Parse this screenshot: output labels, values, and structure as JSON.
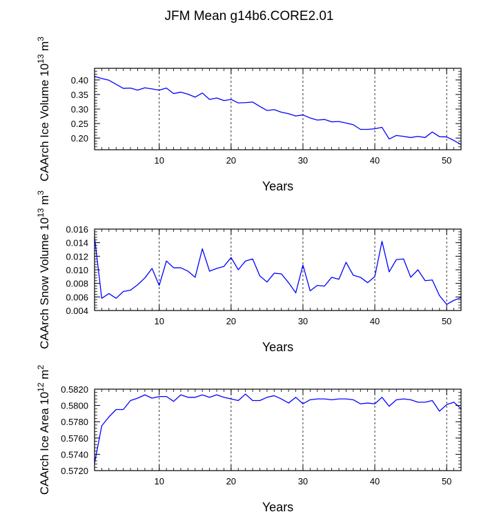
{
  "figure_title": "JFM Mean g14b6.CORE2.01",
  "colors": {
    "line": "#0000ff",
    "axis": "#000000",
    "grid": "#000000"
  },
  "chart_data": [
    {
      "type": "line",
      "name": "ice-volume",
      "title": "",
      "xlabel": "Years",
      "ylabel_text": "CAArch Ice Volume 10",
      "ylabel_exp": "13",
      "ylabel_unit": " m",
      "ylabel_unit_exp": "3",
      "xlim": [
        1,
        52
      ],
      "ylim": [
        0.16,
        0.44
      ],
      "xticks": [
        10,
        20,
        30,
        40,
        50
      ],
      "xtick_labels": [
        "10",
        "20",
        "30",
        "40",
        "50"
      ],
      "yticks": [
        0.2,
        0.25,
        0.3,
        0.35,
        0.4
      ],
      "ytick_labels": [
        "0.20",
        "0.25",
        "0.30",
        "0.35",
        "0.40"
      ],
      "grid": "vertical dashed at major x ticks",
      "x": [
        1,
        2,
        3,
        4,
        5,
        6,
        7,
        8,
        9,
        10,
        11,
        12,
        13,
        14,
        15,
        16,
        17,
        18,
        19,
        20,
        21,
        22,
        23,
        24,
        25,
        26,
        27,
        28,
        29,
        30,
        31,
        32,
        33,
        34,
        35,
        36,
        37,
        38,
        39,
        40,
        41,
        42,
        43,
        44,
        45,
        46,
        47,
        48,
        49,
        50,
        51,
        52
      ],
      "series": [
        {
          "name": "CAArch Ice Volume",
          "values": [
            0.412,
            0.405,
            0.399,
            0.385,
            0.371,
            0.372,
            0.365,
            0.373,
            0.369,
            0.365,
            0.372,
            0.353,
            0.358,
            0.351,
            0.341,
            0.355,
            0.333,
            0.338,
            0.329,
            0.333,
            0.321,
            0.322,
            0.324,
            0.309,
            0.295,
            0.298,
            0.289,
            0.284,
            0.276,
            0.28,
            0.269,
            0.262,
            0.264,
            0.256,
            0.257,
            0.252,
            0.246,
            0.23,
            0.23,
            0.232,
            0.237,
            0.197,
            0.209,
            0.206,
            0.202,
            0.206,
            0.202,
            0.221,
            0.205,
            0.204,
            0.192,
            0.178
          ]
        }
      ]
    },
    {
      "type": "line",
      "name": "snow-volume",
      "title": "",
      "xlabel": "Years",
      "ylabel_text": "CAArch Snow Volume 10",
      "ylabel_exp": "13",
      "ylabel_unit": " m",
      "ylabel_unit_exp": "3",
      "xlim": [
        1,
        52
      ],
      "ylim": [
        0.004,
        0.016
      ],
      "xticks": [
        10,
        20,
        30,
        40,
        50
      ],
      "xtick_labels": [
        "10",
        "20",
        "30",
        "40",
        "50"
      ],
      "yticks": [
        0.004,
        0.006,
        0.008,
        0.01,
        0.012,
        0.014,
        0.016
      ],
      "ytick_labels": [
        "0.004",
        "0.006",
        "0.008",
        "0.010",
        "0.012",
        "0.014",
        "0.016"
      ],
      "grid": "vertical dashed at major x ticks",
      "x": [
        1,
        2,
        3,
        4,
        5,
        6,
        7,
        8,
        9,
        10,
        11,
        12,
        13,
        14,
        15,
        16,
        17,
        18,
        19,
        20,
        21,
        22,
        23,
        24,
        25,
        26,
        27,
        28,
        29,
        30,
        31,
        32,
        33,
        34,
        35,
        36,
        37,
        38,
        39,
        40,
        41,
        42,
        43,
        44,
        45,
        46,
        47,
        48,
        49,
        50,
        51,
        52
      ],
      "series": [
        {
          "name": "CAArch Snow Volume",
          "values": [
            0.0148,
            0.0058,
            0.0065,
            0.0058,
            0.0068,
            0.007,
            0.0078,
            0.0088,
            0.0102,
            0.0077,
            0.0113,
            0.0103,
            0.0103,
            0.0098,
            0.0089,
            0.0131,
            0.0098,
            0.0102,
            0.0105,
            0.0118,
            0.01,
            0.0113,
            0.0116,
            0.0091,
            0.0082,
            0.0095,
            0.0094,
            0.0081,
            0.0066,
            0.0107,
            0.0069,
            0.0077,
            0.0076,
            0.0089,
            0.0086,
            0.0111,
            0.0092,
            0.0089,
            0.0081,
            0.009,
            0.0142,
            0.0097,
            0.0115,
            0.0116,
            0.0089,
            0.01,
            0.0084,
            0.0085,
            0.0062,
            0.0049,
            0.0055,
            0.0059
          ]
        }
      ]
    },
    {
      "type": "line",
      "name": "ice-area",
      "title": "",
      "xlabel": "Years",
      "ylabel_text": "CAArch Ice Area 10",
      "ylabel_exp": "12",
      "ylabel_unit": " m",
      "ylabel_unit_exp": "2",
      "xlim": [
        1,
        52
      ],
      "ylim": [
        0.572,
        0.582
      ],
      "xticks": [
        10,
        20,
        30,
        40,
        50
      ],
      "xtick_labels": [
        "10",
        "20",
        "30",
        "40",
        "50"
      ],
      "yticks": [
        0.572,
        0.574,
        0.576,
        0.578,
        0.58,
        0.582
      ],
      "ytick_labels": [
        "0.5720",
        "0.5740",
        "0.5760",
        "0.5780",
        "0.5800",
        "0.5820"
      ],
      "grid": "vertical dashed at major x ticks",
      "x": [
        1,
        2,
        3,
        4,
        5,
        6,
        7,
        8,
        9,
        10,
        11,
        12,
        13,
        14,
        15,
        16,
        17,
        18,
        19,
        20,
        21,
        22,
        23,
        24,
        25,
        26,
        27,
        28,
        29,
        30,
        31,
        32,
        33,
        34,
        35,
        36,
        37,
        38,
        39,
        40,
        41,
        42,
        43,
        44,
        45,
        46,
        47,
        48,
        49,
        50,
        51,
        52
      ],
      "series": [
        {
          "name": "CAArch Ice Area",
          "values": [
            0.5729,
            0.5775,
            0.5786,
            0.5795,
            0.5795,
            0.5806,
            0.5809,
            0.5813,
            0.5809,
            0.5811,
            0.5811,
            0.5805,
            0.5813,
            0.581,
            0.581,
            0.5813,
            0.581,
            0.5813,
            0.581,
            0.5808,
            0.5806,
            0.5814,
            0.5806,
            0.5806,
            0.581,
            0.5812,
            0.5808,
            0.5803,
            0.581,
            0.5802,
            0.5807,
            0.5808,
            0.5808,
            0.5807,
            0.5808,
            0.5808,
            0.5807,
            0.5802,
            0.5803,
            0.5802,
            0.581,
            0.5799,
            0.5807,
            0.5808,
            0.5807,
            0.5804,
            0.5804,
            0.5806,
            0.5793,
            0.5801,
            0.5804,
            0.5796
          ]
        }
      ]
    }
  ]
}
